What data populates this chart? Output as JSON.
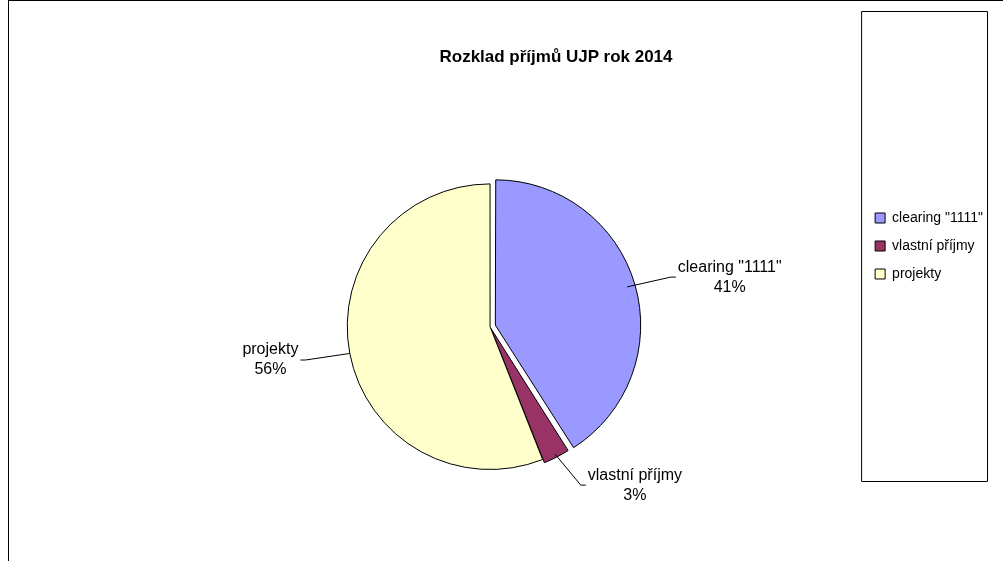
{
  "chart_data": {
    "type": "pie",
    "title": "Rozklad příjmů UJP rok 2014",
    "categories": [
      "clearing \"1111\"",
      "vlastní příjmy",
      "projekty"
    ],
    "values": [
      41,
      3,
      56
    ],
    "value_labels": [
      "41%",
      "3%",
      "56%"
    ],
    "colors": [
      "#9999ff",
      "#993366",
      "#ffffcc"
    ],
    "legend": "right"
  }
}
